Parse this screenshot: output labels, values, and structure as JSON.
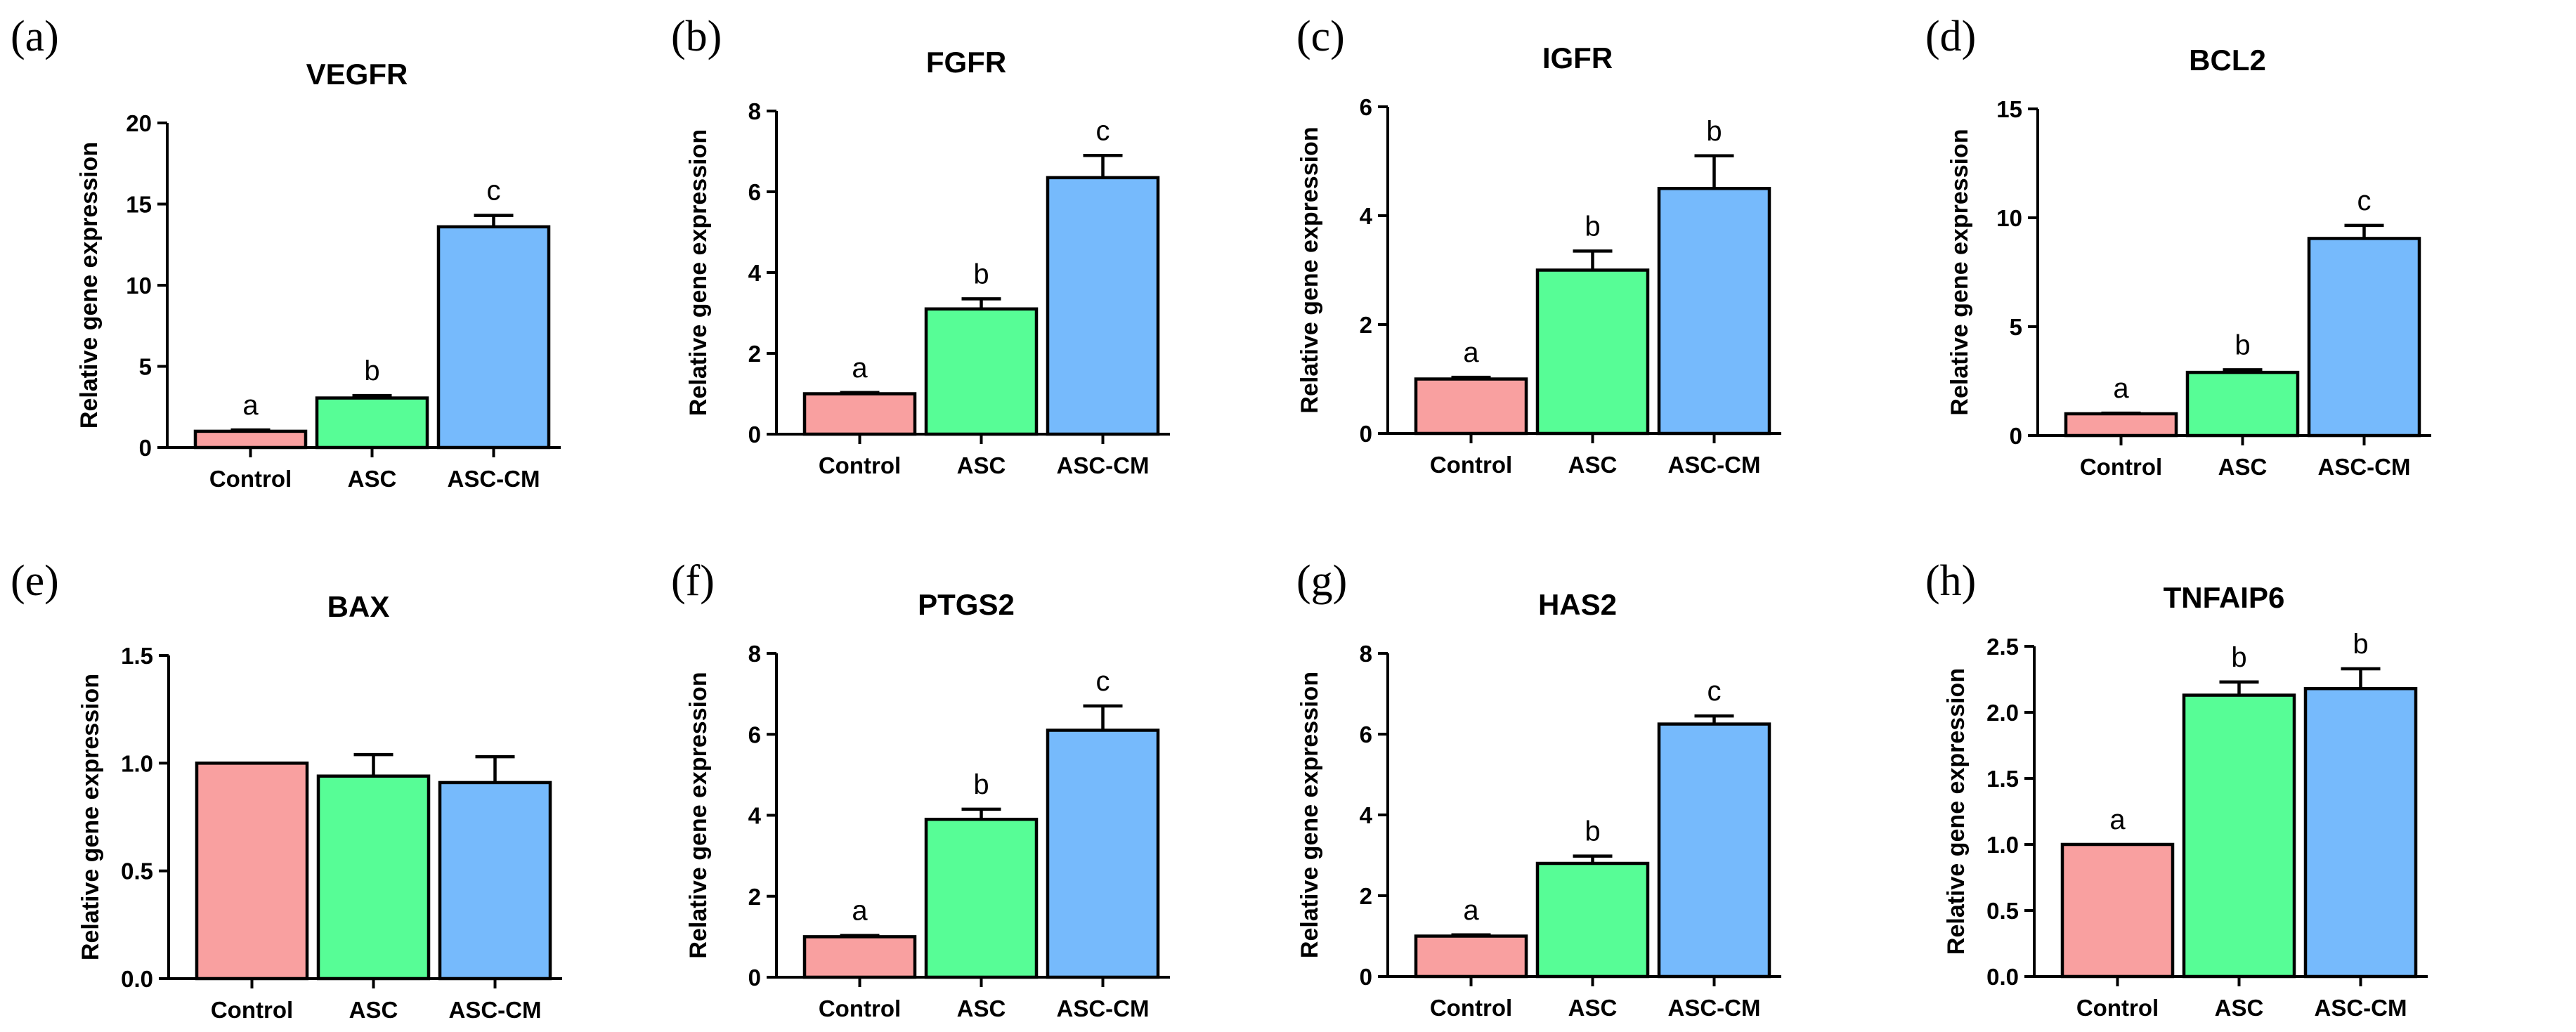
{
  "colors": {
    "Control": "#f9a0a0",
    "ASC": "#57fd96",
    "ASC-CM": "#76bafc"
  },
  "chart_data": [
    {
      "letter": "(a)",
      "type": "bar",
      "title": "VEGFR",
      "ylabel": "Relative gene expression",
      "categories": [
        "Control",
        "ASC",
        "ASC-CM"
      ],
      "values": [
        1.0,
        3.05,
        13.6
      ],
      "errors": [
        0.08,
        0.15,
        0.7
      ],
      "labels": [
        "a",
        "b",
        "c"
      ],
      "ylim": [
        0,
        20
      ],
      "yticks": [
        "0",
        "5",
        "10",
        "15",
        "20"
      ]
    },
    {
      "letter": "(b)",
      "type": "bar",
      "title": "FGFR",
      "ylabel": "Relative gene expression",
      "categories": [
        "Control",
        "ASC",
        "ASC-CM"
      ],
      "values": [
        1.0,
        3.1,
        6.35
      ],
      "errors": [
        0.03,
        0.25,
        0.55
      ],
      "labels": [
        "a",
        "b",
        "c"
      ],
      "ylim": [
        0,
        8
      ],
      "yticks": [
        "0",
        "2",
        "4",
        "6",
        "8"
      ]
    },
    {
      "letter": "(c)",
      "type": "bar",
      "title": "IGFR",
      "ylabel": "Relative gene expression",
      "categories": [
        "Control",
        "ASC",
        "ASC-CM"
      ],
      "values": [
        1.0,
        3.0,
        4.5
      ],
      "errors": [
        0.03,
        0.35,
        0.6
      ],
      "labels": [
        "a",
        "b",
        "b"
      ],
      "ylim": [
        0,
        6
      ],
      "yticks": [
        "0",
        "2",
        "4",
        "6"
      ]
    },
    {
      "letter": "(d)",
      "type": "bar",
      "title": "BCL2",
      "ylabel": "Relative gene expression",
      "categories": [
        "Control",
        "ASC",
        "ASC-CM"
      ],
      "values": [
        1.0,
        2.9,
        9.05
      ],
      "errors": [
        0.03,
        0.12,
        0.6
      ],
      "labels": [
        "a",
        "b",
        "c"
      ],
      "ylim": [
        0,
        15
      ],
      "yticks": [
        "0",
        "5",
        "10",
        "15"
      ]
    },
    {
      "letter": "(e)",
      "type": "bar",
      "title": "BAX",
      "ylabel": "Relative gene expression",
      "categories": [
        "Control",
        "ASC",
        "ASC-CM"
      ],
      "values": [
        1.0,
        0.94,
        0.91
      ],
      "errors": [
        0.0,
        0.1,
        0.12
      ],
      "labels": [
        "",
        "",
        ""
      ],
      "ylim": [
        0,
        1.5
      ],
      "yticks": [
        "0.0",
        "0.5",
        "1.0",
        "1.5"
      ]
    },
    {
      "letter": "(f)",
      "type": "bar",
      "title": "PTGS2",
      "ylabel": "Relative gene expression",
      "categories": [
        "Control",
        "ASC",
        "ASC-CM"
      ],
      "values": [
        1.0,
        3.9,
        6.1
      ],
      "errors": [
        0.03,
        0.25,
        0.6
      ],
      "labels": [
        "a",
        "b",
        "c"
      ],
      "ylim": [
        0,
        8
      ],
      "yticks": [
        "0",
        "2",
        "4",
        "6",
        "8"
      ]
    },
    {
      "letter": "(g)",
      "type": "bar",
      "title": "HAS2",
      "ylabel": "Relative gene expression",
      "categories": [
        "Control",
        "ASC",
        "ASC-CM"
      ],
      "values": [
        1.0,
        2.8,
        6.25
      ],
      "errors": [
        0.03,
        0.18,
        0.2
      ],
      "labels": [
        "a",
        "b",
        "c"
      ],
      "ylim": [
        0,
        8
      ],
      "yticks": [
        "0",
        "2",
        "4",
        "6",
        "8"
      ]
    },
    {
      "letter": "(h)",
      "type": "bar",
      "title": "TNFAIP6",
      "ylabel": "Relative gene expression",
      "categories": [
        "Control",
        "ASC",
        "ASC-CM"
      ],
      "values": [
        1.0,
        2.13,
        2.18
      ],
      "errors": [
        0.0,
        0.1,
        0.15
      ],
      "labels": [
        "a",
        "b",
        "b"
      ],
      "ylim": [
        0,
        2.5
      ],
      "yticks": [
        "0.0",
        "0.5",
        "1.0",
        "1.5",
        "2.0",
        "2.5"
      ]
    }
  ]
}
